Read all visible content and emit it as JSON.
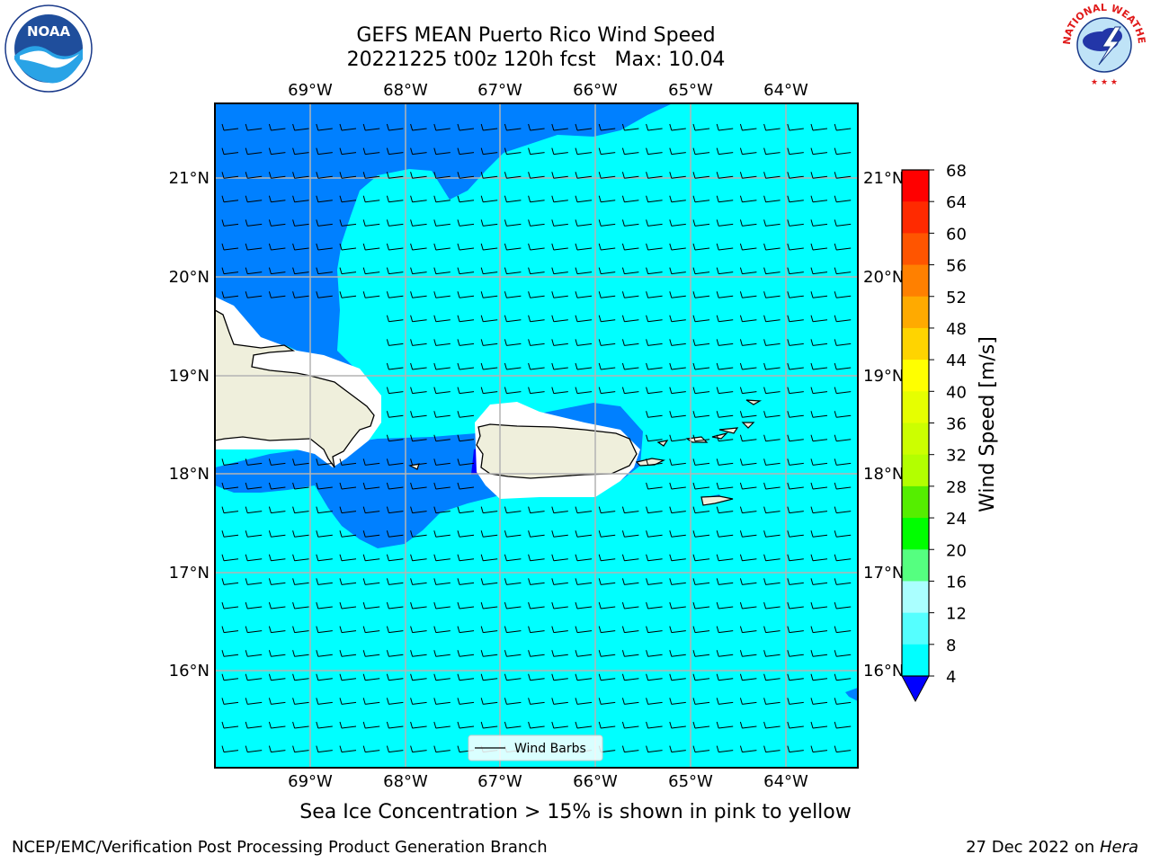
{
  "title": {
    "line1": "GEFS MEAN Puerto Rico Wind Speed",
    "line2": "20221225 t00z 120h fcst   Max: 10.04"
  },
  "map": {
    "lon_labels": [
      "69°W",
      "68°W",
      "67°W",
      "66°W",
      "65°W",
      "64°W"
    ],
    "lat_labels": [
      "21°N",
      "20°N",
      "19°N",
      "18°N",
      "17°N",
      "16°N"
    ],
    "legend_label": "Wind Barbs",
    "colors": {
      "ocean_8_12": "#00ffff",
      "ocean_4_8": "#0080ff",
      "ocean_lt4": "#0000ff",
      "land": "#efefdc",
      "grid": "#b4b4b4"
    }
  },
  "colorbar": {
    "label": "Wind Speed [m/s]",
    "ticks": [
      "68",
      "64",
      "60",
      "56",
      "52",
      "48",
      "44",
      "40",
      "36",
      "32",
      "28",
      "24",
      "20",
      "16",
      "12",
      "8",
      "4"
    ],
    "colors": [
      "#ff0000",
      "#ff2a00",
      "#ff5500",
      "#ff8000",
      "#ffaa00",
      "#ffd400",
      "#ffff00",
      "#e6ff00",
      "#ccff00",
      "#b3ff00",
      "#55ee00",
      "#00ff00",
      "#55ff80",
      "#aaffff",
      "#55ffff",
      "#00ffff",
      "#0080ff"
    ],
    "under_color": "#0000ff"
  },
  "footer": {
    "sea_ice": "Sea Ice Concentration > 15% is shown in pink to yellow",
    "credit_left": "NCEP/EMC/Verification Post Processing Product Generation Branch",
    "credit_right_date": "27 Dec 2022 on ",
    "credit_right_host": "Hera"
  },
  "logos": {
    "left": "noaa-logo",
    "right": "national-weather-service-logo",
    "left_text": "NOAA",
    "right_text": "NATIONAL WEATHER SERVICE"
  }
}
